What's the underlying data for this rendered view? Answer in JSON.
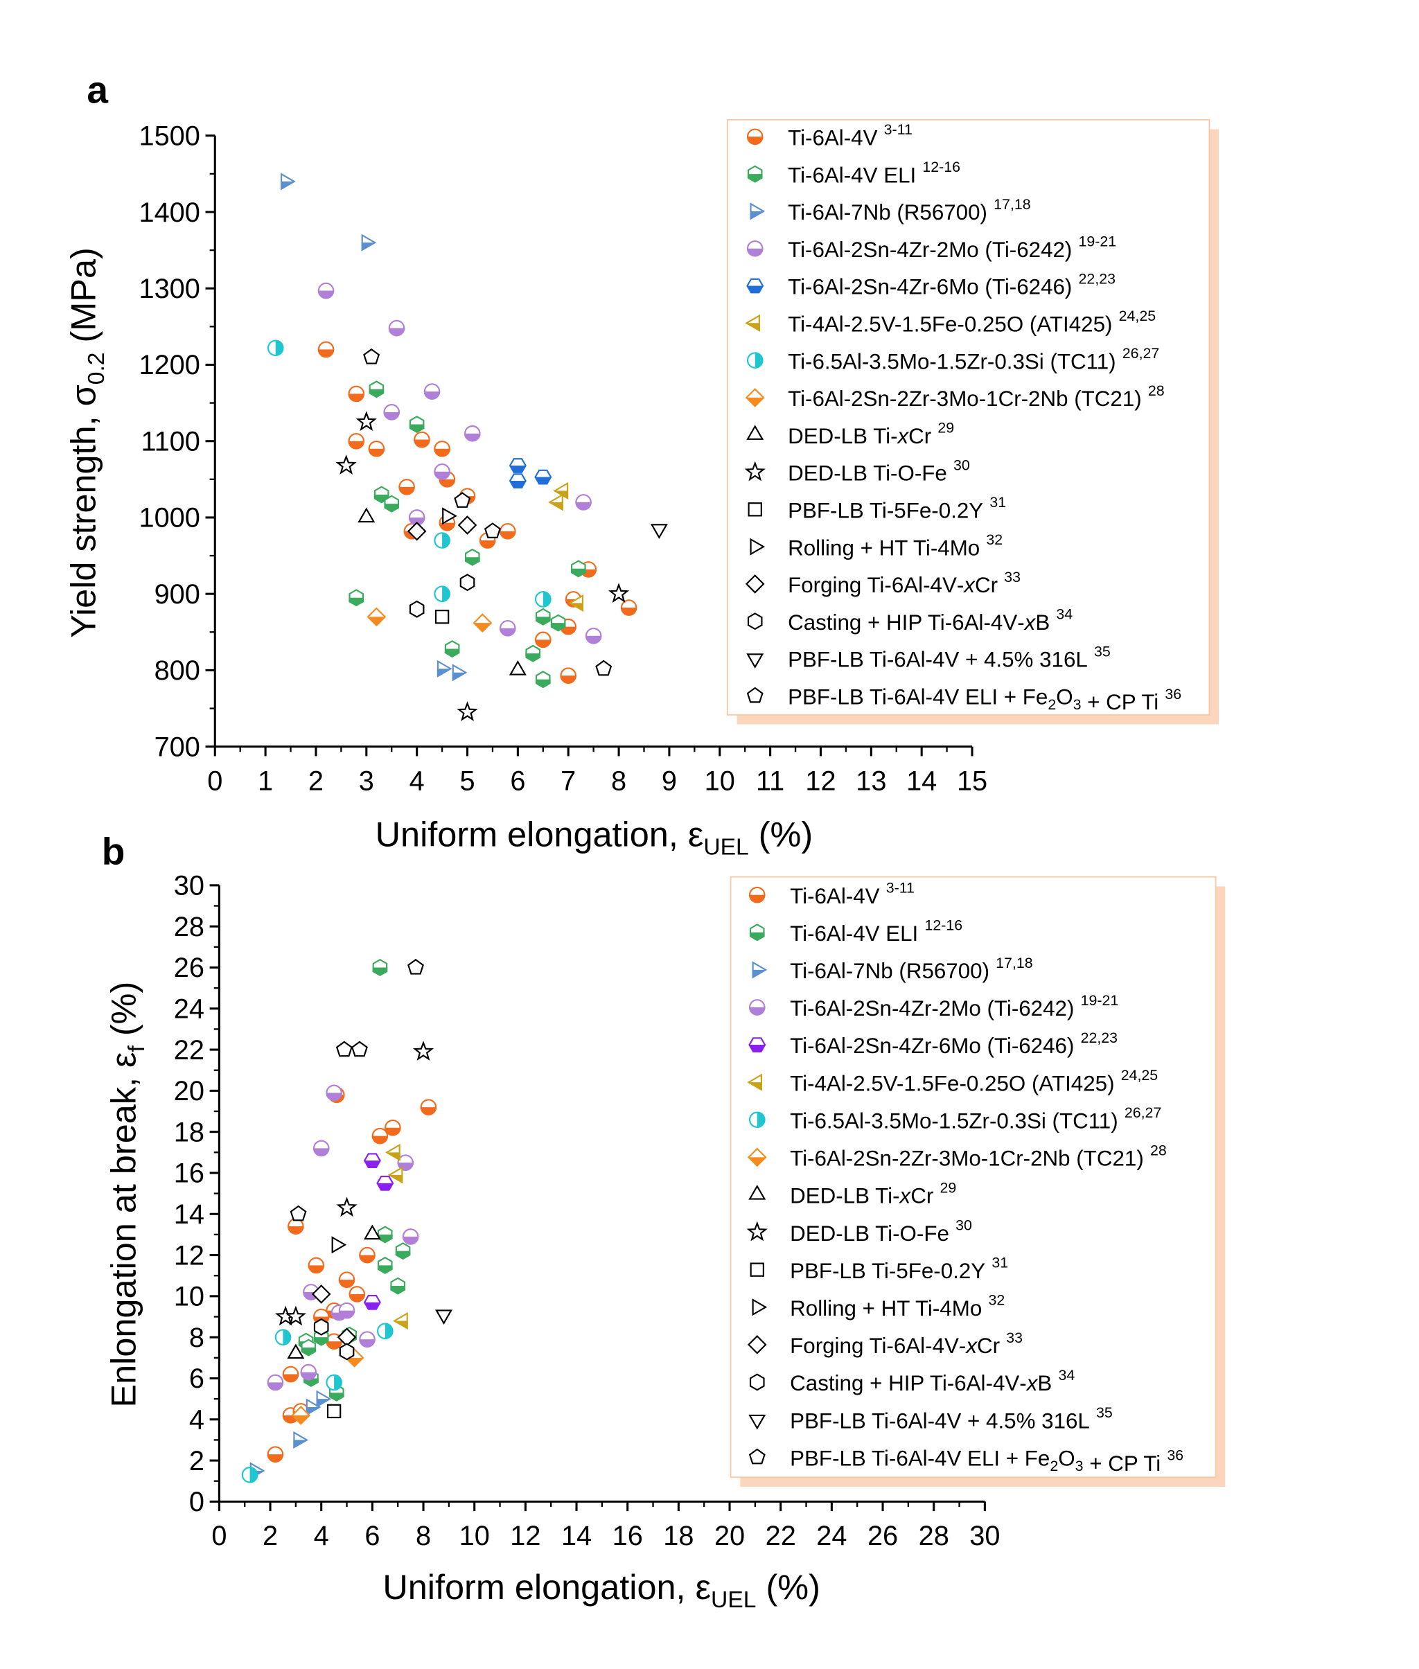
{
  "chart_data": [
    {
      "type": "scatter",
      "panel": "a",
      "xlabel": {
        "main": "Uniform elongation, ε",
        "sub": "UEL",
        "tail": " (%)"
      },
      "ylabel": {
        "main": "Yield strength, σ",
        "sub": "0.2",
        "tail": " (MPa)"
      },
      "xlim": [
        0,
        15
      ],
      "xstep": 1,
      "ylim": [
        700,
        1500
      ],
      "ystep": 100,
      "grid": false,
      "legend": "top-right",
      "series": [
        {
          "name": "Ti-6Al-4V",
          "ref": "3-11",
          "marker": "circle",
          "fill": "half",
          "color": "#f26b1d",
          "points": [
            [
              2.2,
              1220
            ],
            [
              2.8,
              1162
            ],
            [
              2.8,
              1100
            ],
            [
              3.2,
              1090
            ],
            [
              3.8,
              1040
            ],
            [
              4.1,
              1102
            ],
            [
              4.5,
              1090
            ],
            [
              4.6,
              1050
            ],
            [
              4.6,
              993
            ],
            [
              3.9,
              982
            ],
            [
              5.0,
              1028
            ],
            [
              5.4,
              970
            ],
            [
              5.8,
              982
            ],
            [
              7.4,
              932
            ],
            [
              7.1,
              893
            ],
            [
              7.0,
              857
            ],
            [
              6.5,
              840
            ],
            [
              7.0,
              793
            ],
            [
              8.2,
              882
            ]
          ]
        },
        {
          "name": "Ti-6Al-4V ELI",
          "ref": "12-16",
          "marker": "hexagon",
          "fill": "half",
          "color": "#3aaa5c",
          "points": [
            [
              3.2,
              1168
            ],
            [
              4.0,
              1122
            ],
            [
              3.3,
              1030
            ],
            [
              3.5,
              1018
            ],
            [
              5.1,
              948
            ],
            [
              7.2,
              933
            ],
            [
              6.5,
              870
            ],
            [
              6.8,
              862
            ],
            [
              6.3,
              822
            ],
            [
              6.5,
              788
            ],
            [
              2.8,
              895
            ],
            [
              4.7,
              828
            ]
          ]
        },
        {
          "name": "Ti-6Al-7Nb (R56700)",
          "ref": "17,18",
          "marker": "tri-right",
          "fill": "half",
          "color": "#5b8fd0",
          "points": [
            [
              1.4,
              1440
            ],
            [
              3.0,
              1360
            ],
            [
              4.5,
              802
            ],
            [
              4.8,
              797
            ]
          ]
        },
        {
          "name": "Ti-6Al-2Sn-4Zr-2Mo (Ti-6242)",
          "ref": "19-21",
          "marker": "circle",
          "fill": "half",
          "color": "#b07fd8",
          "points": [
            [
              2.2,
              1297
            ],
            [
              3.6,
              1248
            ],
            [
              3.5,
              1138
            ],
            [
              4.3,
              1165
            ],
            [
              5.1,
              1110
            ],
            [
              4.5,
              1060
            ],
            [
              4.0,
              1000
            ],
            [
              7.3,
              1020
            ],
            [
              5.8,
              855
            ],
            [
              7.5,
              845
            ]
          ]
        },
        {
          "name": "Ti-6Al-2Sn-4Zr-6Mo (Ti-6246)",
          "ref": "22,23",
          "marker": "hexagon-flat",
          "fill": "half",
          "color": "#1f6fd6",
          "points": [
            [
              6.0,
              1068
            ],
            [
              6.0,
              1048
            ],
            [
              6.5,
              1053
            ]
          ]
        },
        {
          "name": "Ti-4Al-2.5V-1.5Fe-0.25O (ATI425)",
          "ref": "24,25",
          "marker": "tri-left",
          "fill": "half",
          "color": "#c9a217",
          "points": [
            [
              6.9,
              1035
            ],
            [
              6.8,
              1020
            ],
            [
              7.2,
              888
            ]
          ]
        },
        {
          "name": "Ti-6.5Al-3.5Mo-1.5Zr-0.3Si (TC11)",
          "ref": "26,27",
          "marker": "circle",
          "fill": "halfv",
          "color": "#1fc6d0",
          "points": [
            [
              1.2,
              1222
            ],
            [
              4.5,
              970
            ],
            [
              4.5,
              900
            ],
            [
              6.5,
              893
            ]
          ]
        },
        {
          "name": "Ti-6Al-2Sn-2Zr-3Mo-1Cr-2Nb (TC21)",
          "ref": "28",
          "marker": "diamond",
          "fill": "half",
          "color": "#f58a1f",
          "points": [
            [
              3.2,
              870
            ],
            [
              5.3,
              862
            ]
          ]
        },
        {
          "name": "DED-LB Ti-xCr",
          "ref": "29",
          "marker": "tri-up",
          "fill": "open",
          "color": "#000000",
          "points": [
            [
              3.0,
              1000
            ],
            [
              6.0,
              800
            ]
          ]
        },
        {
          "name": "DED-LB Ti-O-Fe",
          "ref": "30",
          "marker": "star",
          "fill": "open",
          "color": "#000000",
          "points": [
            [
              3.0,
              1125
            ],
            [
              2.6,
              1068
            ],
            [
              8.0,
              900
            ],
            [
              5.0,
              745
            ]
          ]
        },
        {
          "name": "PBF-LB Ti-5Fe-0.2Y",
          "ref": "31",
          "marker": "square",
          "fill": "open",
          "color": "#000000",
          "points": [
            [
              4.5,
              870
            ]
          ]
        },
        {
          "name": "Rolling + HT Ti-4Mo",
          "ref": "32",
          "marker": "tri-right",
          "fill": "open",
          "color": "#000000",
          "points": [
            [
              4.6,
              1002
            ]
          ]
        },
        {
          "name": "Forging Ti-6Al-4V-xCr",
          "ref": "33",
          "marker": "diamond",
          "fill": "open",
          "color": "#000000",
          "points": [
            [
              4.0,
              982
            ],
            [
              5.0,
              990
            ]
          ]
        },
        {
          "name": "Casting + HIP Ti-6Al-4V-xB",
          "ref": "34",
          "marker": "hexagon",
          "fill": "open",
          "color": "#000000",
          "points": [
            [
              4.0,
              880
            ],
            [
              5.0,
              915
            ]
          ]
        },
        {
          "name": "PBF-LB Ti-6Al-4V + 4.5% 316L",
          "ref": "35",
          "marker": "tri-down",
          "fill": "open",
          "color": "#000000",
          "points": [
            [
              8.8,
              985
            ]
          ]
        },
        {
          "name": "PBF-LB Ti-6Al-4V ELI + Fe2O3 + CP Ti",
          "ref": "36",
          "marker": "pentagon",
          "fill": "open",
          "color": "#000000",
          "points": [
            [
              3.1,
              1210
            ],
            [
              4.9,
              1022
            ],
            [
              5.5,
              982
            ],
            [
              7.7,
              802
            ]
          ]
        }
      ]
    },
    {
      "type": "scatter",
      "panel": "b",
      "xlabel": {
        "main": "Uniform elongation, ε",
        "sub": "UEL",
        "tail": " (%)"
      },
      "ylabel": {
        "main": "Enlongation at break, ε",
        "sub": "f",
        "tail": " (%)"
      },
      "xlim": [
        0,
        30
      ],
      "xstep": 2,
      "ylim": [
        0,
        30
      ],
      "ystep": 2,
      "grid": false,
      "legend": "top-right",
      "series": [
        {
          "name": "Ti-6Al-4V",
          "ref": "3-11",
          "marker": "circle",
          "fill": "half",
          "color": "#f26b1d",
          "points": [
            [
              3.0,
              13.4
            ],
            [
              3.8,
              11.5
            ],
            [
              4.5,
              9.3
            ],
            [
              5.0,
              10.8
            ],
            [
              5.4,
              10.1
            ],
            [
              5.8,
              12.0
            ],
            [
              6.3,
              17.8
            ],
            [
              6.8,
              18.2
            ],
            [
              8.2,
              19.2
            ],
            [
              4.6,
              19.8
            ],
            [
              2.2,
              2.3
            ],
            [
              2.8,
              4.2
            ],
            [
              2.8,
              6.2
            ],
            [
              4.0,
              9.0
            ],
            [
              4.5,
              7.8
            ],
            [
              3.2,
              4.4
            ]
          ]
        },
        {
          "name": "Ti-6Al-4V ELI",
          "ref": "12-16",
          "marker": "hexagon",
          "fill": "half",
          "color": "#3aaa5c",
          "points": [
            [
              6.3,
              26.0
            ],
            [
              6.5,
              13.0
            ],
            [
              6.5,
              11.5
            ],
            [
              7.2,
              12.2
            ],
            [
              7.0,
              10.5
            ],
            [
              3.4,
              7.8
            ],
            [
              4.0,
              8.0
            ],
            [
              5.1,
              8.1
            ],
            [
              3.6,
              6.0
            ],
            [
              4.6,
              5.3
            ],
            [
              3.5,
              7.5
            ]
          ]
        },
        {
          "name": "Ti-6Al-7Nb (R56700)",
          "ref": "17,18",
          "marker": "tri-right",
          "fill": "half",
          "color": "#5b8fd0",
          "points": [
            [
              1.4,
              1.5
            ],
            [
              3.1,
              3.0
            ],
            [
              3.6,
              4.6
            ],
            [
              4.0,
              5.0
            ]
          ]
        },
        {
          "name": "Ti-6Al-2Sn-4Zr-2Mo (Ti-6242)",
          "ref": "19-21",
          "marker": "circle",
          "fill": "half",
          "color": "#b07fd8",
          "points": [
            [
              2.2,
              5.8
            ],
            [
              3.5,
              6.3
            ],
            [
              3.6,
              10.2
            ],
            [
              4.0,
              17.2
            ],
            [
              4.5,
              19.9
            ],
            [
              4.7,
              9.2
            ],
            [
              5.0,
              9.3
            ],
            [
              5.8,
              7.9
            ],
            [
              7.3,
              16.5
            ],
            [
              7.5,
              12.9
            ]
          ]
        },
        {
          "name": "Ti-6Al-2Sn-4Zr-6Mo (Ti-6246)",
          "ref": "22,23",
          "marker": "hexagon-flat",
          "fill": "half",
          "color": "#8a1ff0",
          "points": [
            [
              6.0,
              16.6
            ],
            [
              6.5,
              15.5
            ],
            [
              6.0,
              9.7
            ]
          ]
        },
        {
          "name": "Ti-4Al-2.5V-1.5Fe-0.25O (ATI425)",
          "ref": "24,25",
          "marker": "tri-left",
          "fill": "half",
          "color": "#c9a217",
          "points": [
            [
              6.9,
              17.0
            ],
            [
              7.0,
              15.9
            ],
            [
              7.2,
              8.8
            ]
          ]
        },
        {
          "name": "Ti-6.5Al-3.5Mo-1.5Zr-0.3Si (TC11)",
          "ref": "26,27",
          "marker": "circle",
          "fill": "halfv",
          "color": "#1fc6d0",
          "points": [
            [
              1.2,
              1.3
            ],
            [
              2.5,
              8.0
            ],
            [
              4.5,
              5.8
            ],
            [
              6.5,
              8.3
            ]
          ]
        },
        {
          "name": "Ti-6Al-2Sn-2Zr-3Mo-1Cr-2Nb (TC21)",
          "ref": "28",
          "marker": "diamond",
          "fill": "half",
          "color": "#f58a1f",
          "points": [
            [
              3.2,
              4.2
            ],
            [
              5.3,
              7.0
            ]
          ]
        },
        {
          "name": "DED-LB Ti-xCr",
          "ref": "29",
          "marker": "tri-up",
          "fill": "open",
          "color": "#000000",
          "points": [
            [
              3.0,
              7.2
            ],
            [
              6.0,
              13.0
            ]
          ]
        },
        {
          "name": "DED-LB Ti-O-Fe",
          "ref": "30",
          "marker": "star",
          "fill": "open",
          "color": "#000000",
          "points": [
            [
              2.6,
              9.0
            ],
            [
              3.0,
              9.0
            ],
            [
              5.0,
              14.3
            ],
            [
              8.0,
              21.9
            ]
          ]
        },
        {
          "name": "PBF-LB Ti-5Fe-0.2Y",
          "ref": "31",
          "marker": "square",
          "fill": "open",
          "color": "#000000",
          "points": [
            [
              4.5,
              4.4
            ]
          ]
        },
        {
          "name": "Rolling + HT Ti-4Mo",
          "ref": "32",
          "marker": "tri-right",
          "fill": "open",
          "color": "#000000",
          "points": [
            [
              4.6,
              12.5
            ]
          ]
        },
        {
          "name": "Forging Ti-6Al-4V-xCr",
          "ref": "33",
          "marker": "diamond",
          "fill": "open",
          "color": "#000000",
          "points": [
            [
              4.0,
              10.1
            ],
            [
              5.0,
              8.0
            ]
          ]
        },
        {
          "name": "Casting + HIP Ti-6Al-4V-xB",
          "ref": "34",
          "marker": "hexagon",
          "fill": "open",
          "color": "#000000",
          "points": [
            [
              4.0,
              8.5
            ],
            [
              5.0,
              7.3
            ]
          ]
        },
        {
          "name": "PBF-LB Ti-6Al-4V + 4.5% 316L",
          "ref": "35",
          "marker": "tri-down",
          "fill": "open",
          "color": "#000000",
          "points": [
            [
              8.8,
              9.1
            ]
          ]
        },
        {
          "name": "PBF-LB Ti-6Al-4V ELI + Fe2O3 + CP Ti",
          "ref": "36",
          "marker": "pentagon",
          "fill": "open",
          "color": "#000000",
          "points": [
            [
              3.1,
              14.0
            ],
            [
              4.9,
              22.0
            ],
            [
              5.5,
              22.0
            ],
            [
              7.7,
              26.0
            ]
          ]
        }
      ]
    }
  ],
  "colors": {
    "legend_shadow": "#fcd5bd",
    "legend_border": "#f7c9a8"
  }
}
